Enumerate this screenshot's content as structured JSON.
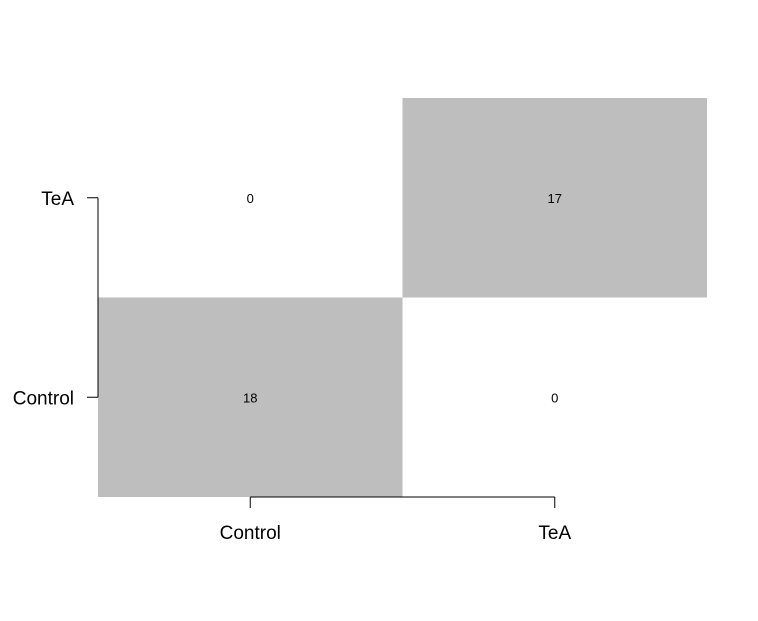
{
  "chart_data": {
    "type": "heatmap",
    "title": "",
    "xlabel": "",
    "ylabel": "",
    "x_categories": [
      "Control",
      "TeA"
    ],
    "y_categories": [
      "Control",
      "TeA"
    ],
    "values": [
      [
        18,
        0
      ],
      [
        0,
        17
      ]
    ],
    "colors": {
      "high": "#bebebe",
      "zero": "#ffffff"
    },
    "grid": false,
    "legend": "none"
  }
}
